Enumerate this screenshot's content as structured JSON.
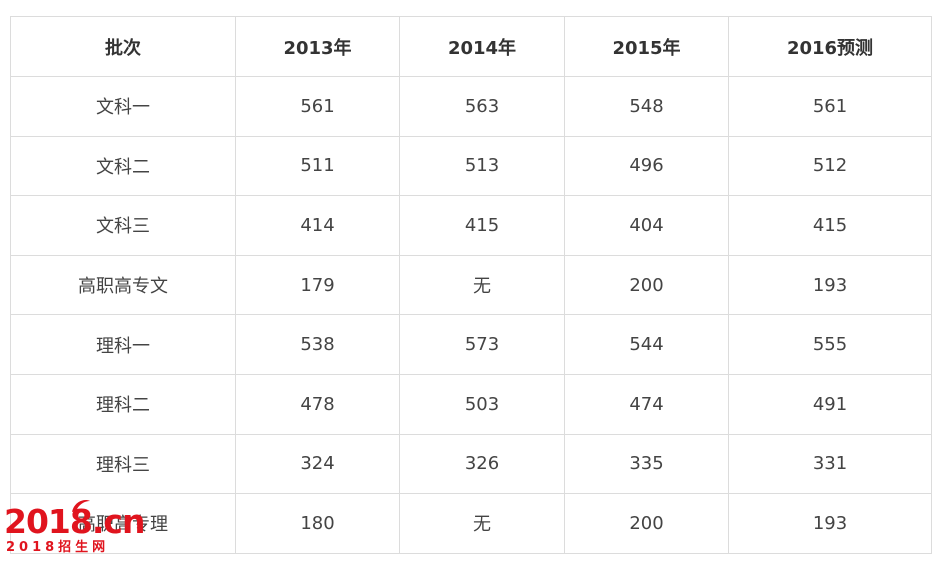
{
  "table": {
    "headers": [
      "批次",
      "2013年",
      "2014年",
      "2015年",
      "2016预测"
    ],
    "rows": [
      [
        "文科一",
        "561",
        "563",
        "548",
        "561"
      ],
      [
        "文科二",
        "511",
        "513",
        "496",
        "512"
      ],
      [
        "文科三",
        "414",
        "415",
        "404",
        "415"
      ],
      [
        "高职高专文",
        "179",
        "无",
        "200",
        "193"
      ],
      [
        "理科一",
        "538",
        "573",
        "544",
        "555"
      ],
      [
        "理科二",
        "478",
        "503",
        "474",
        "491"
      ],
      [
        "理科三",
        "324",
        "326",
        "335",
        "331"
      ],
      [
        "高职高专理",
        "180",
        "无",
        "200",
        "193"
      ]
    ]
  },
  "watermark": {
    "main_text": "2018.cn",
    "sub_text": "2018招生网",
    "color": "#e0141e"
  }
}
